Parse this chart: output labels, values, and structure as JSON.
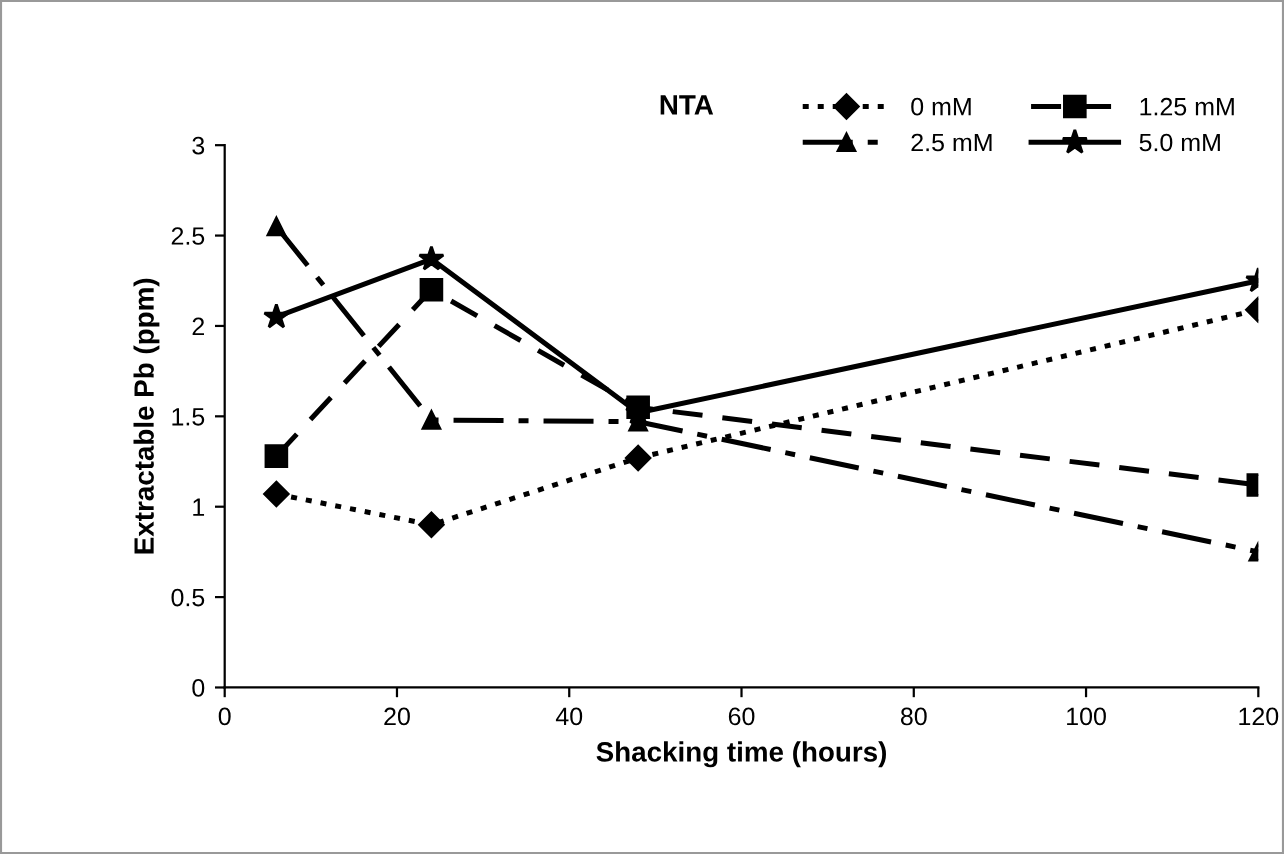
{
  "chart_data": {
    "type": "line",
    "xlabel": "Shacking time (hours)",
    "ylabel": "Extractable Pb (ppm)",
    "legend_title": "NTA",
    "x": [
      6,
      24,
      48,
      120
    ],
    "series": [
      {
        "name": "0 mM",
        "color": "#000000",
        "values": [
          1.07,
          0.9,
          1.27,
          2.09
        ],
        "marker": "diamond",
        "line_style": "dotted"
      },
      {
        "name": "1.25 mM",
        "color": "#000000",
        "values": [
          1.28,
          2.2,
          1.55,
          1.12
        ],
        "marker": "square",
        "line_style": "dashed"
      },
      {
        "name": "2.5 mM",
        "color": "#000000",
        "values": [
          2.55,
          1.48,
          1.47,
          0.75
        ],
        "marker": "triangle",
        "line_style": "dashdot"
      },
      {
        "name": "5.0 mM",
        "color": "#000000",
        "values": [
          2.05,
          2.37,
          1.52,
          2.25
        ],
        "marker": "star",
        "line_style": "solid"
      }
    ],
    "xlim": [
      0,
      120
    ],
    "xticks": [
      0,
      20,
      40,
      60,
      80,
      100,
      120
    ],
    "ylim": [
      0,
      3
    ],
    "yticks": [
      0,
      0.5,
      1,
      1.5,
      2,
      2.5,
      3
    ],
    "grid": false,
    "legend": "top right"
  }
}
